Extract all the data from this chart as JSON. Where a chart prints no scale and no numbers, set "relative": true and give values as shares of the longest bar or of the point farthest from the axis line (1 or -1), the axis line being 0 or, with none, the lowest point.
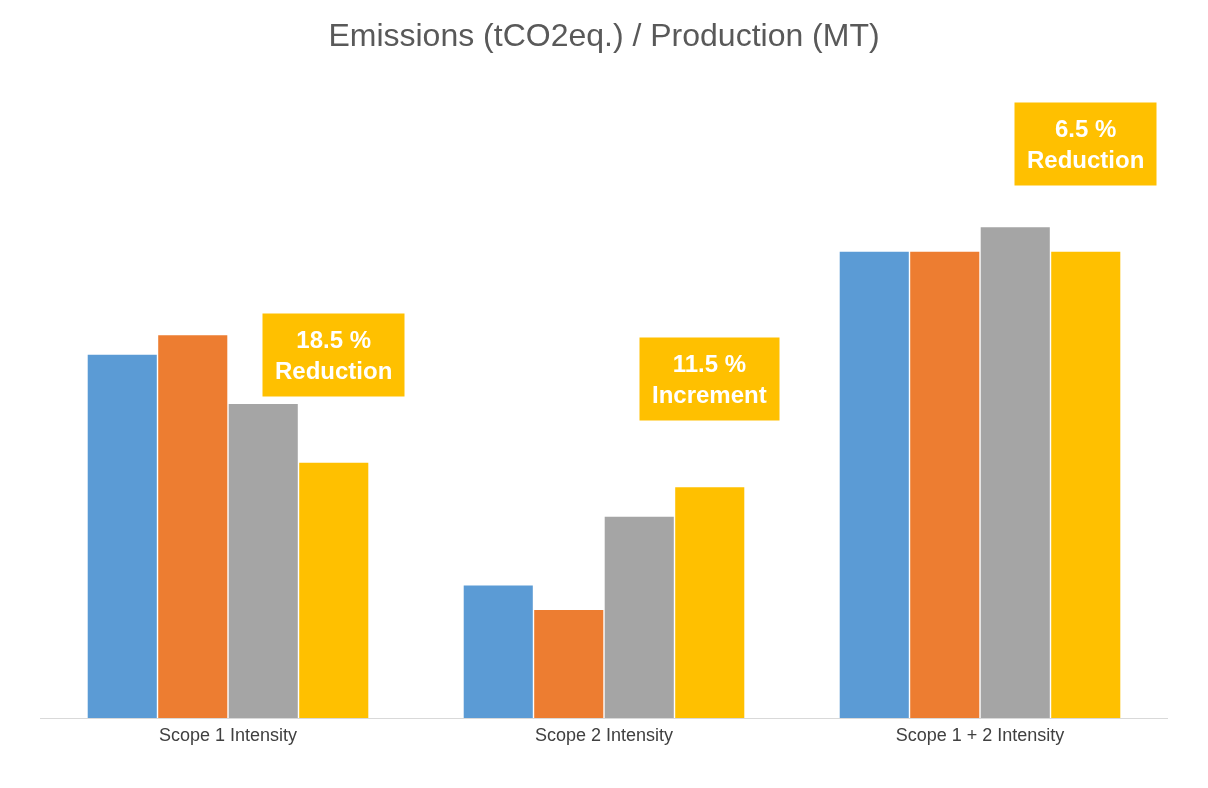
{
  "chart_data": {
    "type": "bar",
    "title": "Emissions (tCO2eq.) / Production (MT)",
    "relative": true,
    "categories": [
      "Scope 1 Intensity",
      "Scope 2 Intensity",
      "Scope 1 + 2 Intensity"
    ],
    "series": [
      {
        "color": "#5b9bd5",
        "values": [
          0.74,
          0.27,
          0.95
        ]
      },
      {
        "color": "#ed7d31",
        "values": [
          0.78,
          0.22,
          0.95
        ]
      },
      {
        "color": "#a5a5a5",
        "values": [
          0.64,
          0.41,
          1
        ]
      },
      {
        "color": "#ffc000",
        "values": [
          0.52,
          0.47,
          0.95
        ]
      }
    ],
    "annotations": [
      "18.5 %\nReduction",
      "11.5 %\nIncrement",
      "6.5 %\nReduction"
    ]
  }
}
